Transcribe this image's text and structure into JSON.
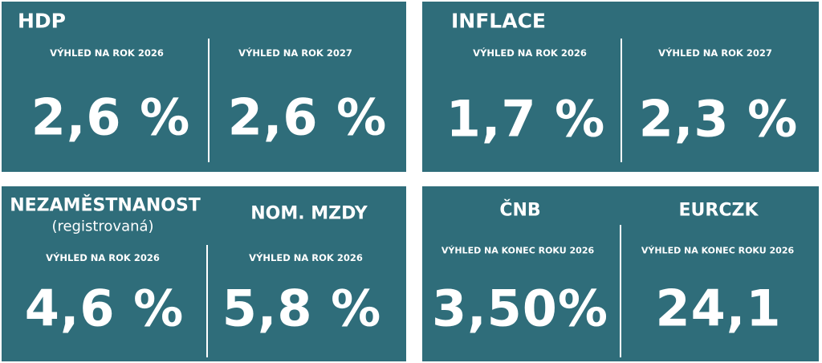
{
  "panels": [
    {
      "title": "HDP",
      "columns": [
        {
          "label": "VÝHLED NA ROK 2026",
          "value": "2,6 %"
        },
        {
          "label": "VÝHLED NA ROK 2027",
          "value": "2,6 %"
        }
      ]
    },
    {
      "title": "INFLACE",
      "columns": [
        {
          "label": "VÝHLED NA ROK 2026",
          "value": "1,7 %"
        },
        {
          "label": "VÝHLED NA ROK 2027",
          "value": "2,3 %"
        }
      ]
    },
    {
      "columns": [
        {
          "heading": "NEZAMĚSTNANOST",
          "subheading": "(registrovaná)",
          "label": "VÝHLED NA ROK 2026",
          "value": "4,6 %"
        },
        {
          "heading": "NOM. MZDY",
          "label": "VÝHLED NA ROK 2026",
          "value": "5,8 %"
        }
      ]
    },
    {
      "columns": [
        {
          "heading": "ČNB",
          "label": "VÝHLED NA KONEC ROKU 2026",
          "value": "3,50%"
        },
        {
          "heading": "EURCZK",
          "label": "VÝHLED NA KONEC ROKU 2026",
          "value": "24,1"
        }
      ]
    }
  ]
}
